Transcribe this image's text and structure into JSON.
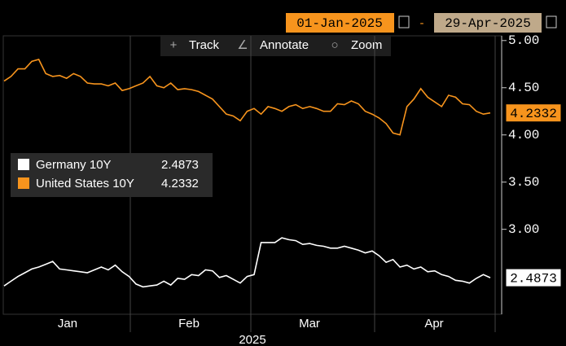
{
  "chart_data": {
    "type": "line",
    "date_range": {
      "start": "01-Jan-2025",
      "separator": "-",
      "end": "29-Apr-2025"
    },
    "toolbar": [
      "Track",
      "Annotate",
      "Zoom"
    ],
    "x_labels": [
      "Jan",
      "Feb",
      "Mar",
      "Apr"
    ],
    "x_label": "2025",
    "ylim": [
      2.1,
      5.05
    ],
    "yticks": [
      {
        "value": 3,
        "label": "3.00"
      },
      {
        "value": 3.5,
        "label": "3.50"
      },
      {
        "value": 4,
        "label": "4.00"
      },
      {
        "value": 4.5,
        "label": "4.50"
      },
      {
        "value": 5,
        "label": "5.00"
      }
    ],
    "series": [
      {
        "name": "Germany 10Y",
        "color": "#ffffff",
        "values": [
          2.4,
          2.45,
          2.5,
          2.54,
          2.58,
          2.6,
          2.63,
          2.66,
          2.58,
          2.57,
          2.56,
          2.55,
          2.54,
          2.57,
          2.6,
          2.57,
          2.62,
          2.55,
          2.5,
          2.42,
          2.39,
          2.4,
          2.41,
          2.45,
          2.41,
          2.48,
          2.47,
          2.52,
          2.51,
          2.57,
          2.56,
          2.49,
          2.51,
          2.47,
          2.43,
          2.5,
          2.52,
          2.86,
          2.86,
          2.86,
          2.91,
          2.89,
          2.88,
          2.84,
          2.85,
          2.83,
          2.82,
          2.8,
          2.8,
          2.82,
          2.8,
          2.78,
          2.75,
          2.77,
          2.72,
          2.65,
          2.68,
          2.6,
          2.62,
          2.58,
          2.6,
          2.55,
          2.56,
          2.52,
          2.5,
          2.46,
          2.45,
          2.43,
          2.48,
          2.52,
          2.4873
        ]
      },
      {
        "name": "United States 10Y",
        "color": "#f7941d",
        "values": [
          4.57,
          4.62,
          4.7,
          4.7,
          4.78,
          4.8,
          4.65,
          4.62,
          4.63,
          4.6,
          4.65,
          4.62,
          4.55,
          4.54,
          4.54,
          4.52,
          4.55,
          4.47,
          4.49,
          4.52,
          4.55,
          4.62,
          4.52,
          4.5,
          4.55,
          4.48,
          4.49,
          4.48,
          4.46,
          4.42,
          4.38,
          4.3,
          4.22,
          4.2,
          4.15,
          4.25,
          4.28,
          4.22,
          4.3,
          4.28,
          4.25,
          4.3,
          4.32,
          4.28,
          4.3,
          4.28,
          4.25,
          4.25,
          4.33,
          4.32,
          4.36,
          4.33,
          4.25,
          4.22,
          4.18,
          4.12,
          4.02,
          4.0,
          4.3,
          4.38,
          4.49,
          4.4,
          4.35,
          4.3,
          4.42,
          4.4,
          4.33,
          4.32,
          4.25,
          4.22,
          4.2332
        ]
      }
    ]
  }
}
